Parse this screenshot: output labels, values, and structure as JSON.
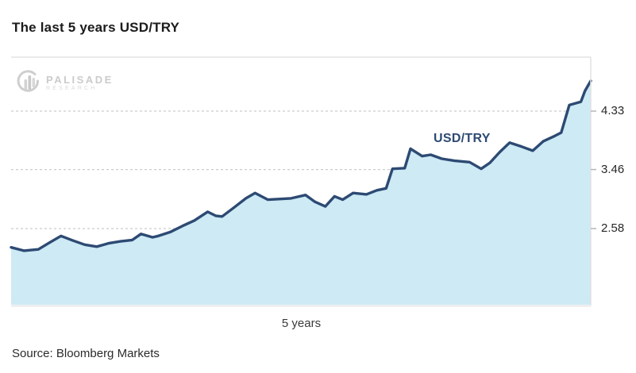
{
  "title": "The last 5 years USD/TRY",
  "source": "Source: Bloomberg Markets",
  "watermark": {
    "brand": "PALISADE",
    "subtitle": "RESEARCH"
  },
  "chart_data": {
    "type": "area",
    "title": "The last 5 years USD/TRY",
    "series_label": "USD/TRY",
    "xlabel": "5 years",
    "y_ticks": [
      4.33,
      3.46,
      2.58
    ],
    "ylim": [
      1.46,
      5.13
    ],
    "grid": "horizontal-dashed",
    "legend_position": "inside-upper-right",
    "colors": {
      "line": "#2d4a73",
      "fill": "#cdeaf5",
      "grid": "#cccccc",
      "axis": "#e2e2e2",
      "tick": "#b5b5b5"
    },
    "points": [
      [
        0.0,
        2.3
      ],
      [
        0.022,
        2.25
      ],
      [
        0.047,
        2.27
      ],
      [
        0.066,
        2.37
      ],
      [
        0.086,
        2.47
      ],
      [
        0.107,
        2.4
      ],
      [
        0.127,
        2.34
      ],
      [
        0.148,
        2.31
      ],
      [
        0.168,
        2.36
      ],
      [
        0.189,
        2.39
      ],
      [
        0.209,
        2.41
      ],
      [
        0.224,
        2.5
      ],
      [
        0.244,
        2.45
      ],
      [
        0.254,
        2.47
      ],
      [
        0.275,
        2.53
      ],
      [
        0.296,
        2.62
      ],
      [
        0.316,
        2.7
      ],
      [
        0.339,
        2.83
      ],
      [
        0.353,
        2.77
      ],
      [
        0.364,
        2.76
      ],
      [
        0.384,
        2.89
      ],
      [
        0.405,
        3.03
      ],
      [
        0.421,
        3.11
      ],
      [
        0.443,
        3.01
      ],
      [
        0.462,
        3.02
      ],
      [
        0.483,
        3.03
      ],
      [
        0.508,
        3.08
      ],
      [
        0.524,
        2.98
      ],
      [
        0.542,
        2.91
      ],
      [
        0.558,
        3.06
      ],
      [
        0.572,
        3.01
      ],
      [
        0.59,
        3.11
      ],
      [
        0.613,
        3.09
      ],
      [
        0.631,
        3.15
      ],
      [
        0.647,
        3.18
      ],
      [
        0.658,
        3.47
      ],
      [
        0.679,
        3.48
      ],
      [
        0.689,
        3.77
      ],
      [
        0.709,
        3.66
      ],
      [
        0.724,
        3.68
      ],
      [
        0.743,
        3.62
      ],
      [
        0.765,
        3.59
      ],
      [
        0.791,
        3.57
      ],
      [
        0.811,
        3.47
      ],
      [
        0.826,
        3.56
      ],
      [
        0.843,
        3.72
      ],
      [
        0.86,
        3.86
      ],
      [
        0.881,
        3.8
      ],
      [
        0.9,
        3.74
      ],
      [
        0.918,
        3.88
      ],
      [
        0.938,
        3.96
      ],
      [
        0.949,
        4.01
      ],
      [
        0.963,
        4.42
      ],
      [
        0.975,
        4.45
      ],
      [
        0.983,
        4.47
      ],
      [
        0.99,
        4.63
      ],
      [
        1.0,
        4.78
      ]
    ]
  }
}
